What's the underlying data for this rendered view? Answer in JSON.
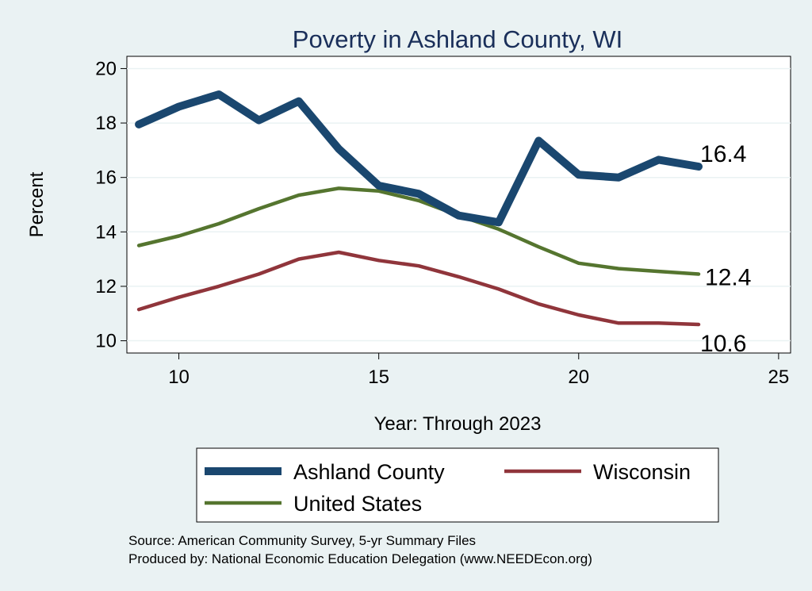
{
  "chart_data": {
    "type": "line",
    "title": "Poverty in Ashland County, WI",
    "xlabel": "Year: Through 2023",
    "ylabel": "Percent",
    "xlim": [
      8.7,
      25.3
    ],
    "ylim": [
      9.55,
      20.45
    ],
    "x_ticks": [
      "10",
      "15",
      "20",
      "25"
    ],
    "y_ticks": [
      "10",
      "12",
      "14",
      "16",
      "18",
      "20"
    ],
    "x": [
      9,
      10,
      11,
      12,
      13,
      14,
      15,
      16,
      17,
      18,
      19,
      20,
      21,
      22,
      23
    ],
    "grid": true,
    "legend_position": "bottom",
    "series": [
      {
        "name": "Ashland County",
        "color": "#1a476f",
        "end_label": "16.4",
        "values": [
          17.95,
          18.6,
          19.05,
          18.1,
          18.8,
          17.05,
          15.7,
          15.4,
          14.6,
          14.35,
          17.35,
          16.1,
          16.0,
          16.65,
          16.4
        ]
      },
      {
        "name": "Wisconsin",
        "color": "#90353b",
        "end_label": "10.6",
        "values": [
          11.15,
          11.6,
          12.0,
          12.45,
          13.0,
          13.25,
          12.95,
          12.75,
          12.35,
          11.9,
          11.35,
          10.95,
          10.65,
          10.65,
          10.6
        ]
      },
      {
        "name": "United States",
        "color": "#55752f",
        "end_label": "12.4",
        "values": [
          13.5,
          13.85,
          14.3,
          14.85,
          15.35,
          15.6,
          15.5,
          15.15,
          14.6,
          14.1,
          13.45,
          12.85,
          12.65,
          12.55,
          12.45
        ]
      }
    ]
  },
  "footer": {
    "source": "Source: American Community Survey, 5-yr Summary Files",
    "produced_by": "Produced by: National Economic Education Delegation (www.NEEDEcon.org)"
  }
}
